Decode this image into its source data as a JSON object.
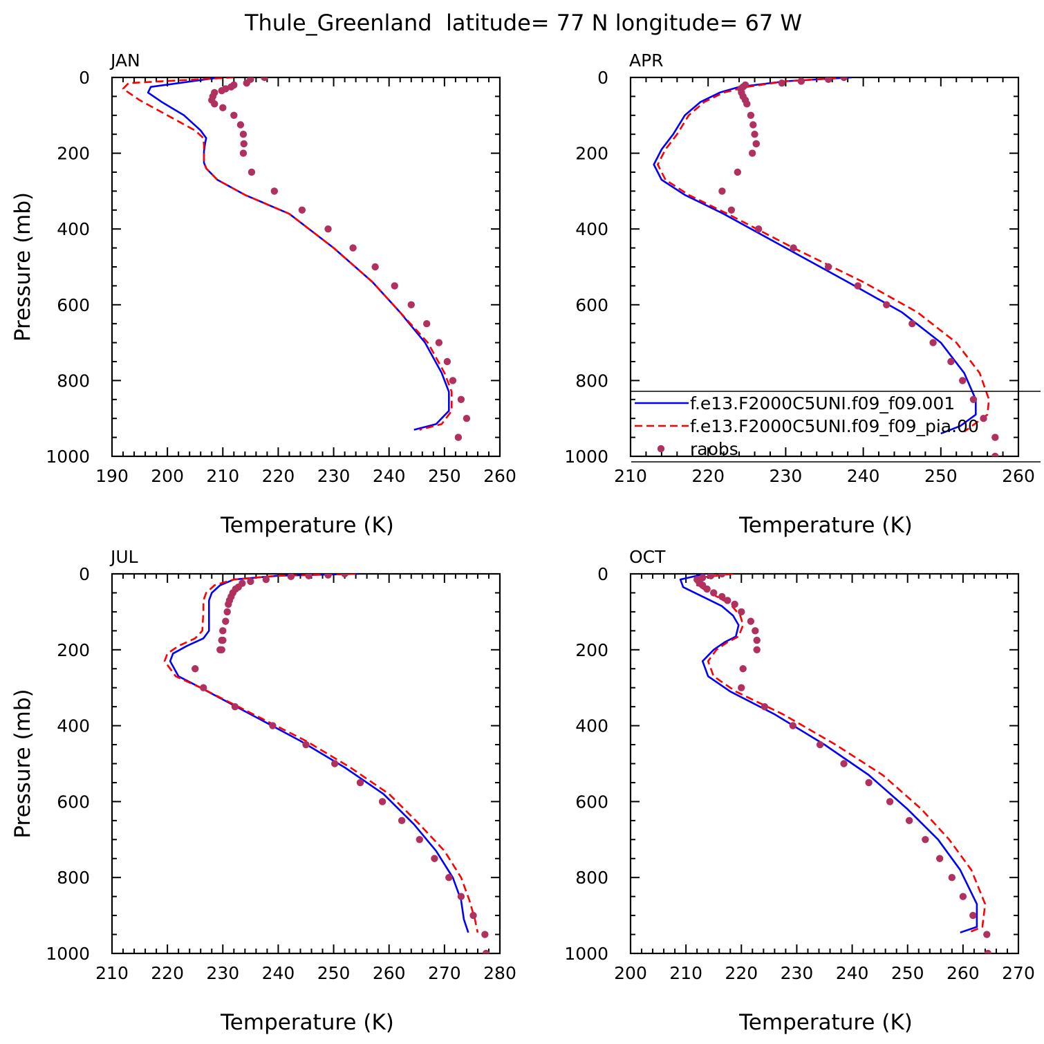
{
  "figure_title": "Thule_Greenland  latitude= 77 N longitude= 67 W",
  "legend": {
    "entries": [
      {
        "label": "f.e13.F2000C5UNI.f09_f09.001",
        "color": "#0000ff",
        "style": "solid"
      },
      {
        "label": "f.e13.F2000C5UNI.f09_f09_pia.00",
        "color": "#ff0000",
        "style": "dashed"
      },
      {
        "label": "raobs",
        "color": "#b03060",
        "style": "marker"
      }
    ]
  },
  "chart_data": [
    {
      "type": "line",
      "panel_label": "JAN",
      "xlabel": "Temperature (K)",
      "ylabel": "Pressure (mb)",
      "xlim": [
        190,
        260
      ],
      "ylim": [
        1000,
        0
      ],
      "xticks": [
        190,
        200,
        210,
        220,
        230,
        240,
        250,
        260
      ],
      "yticks": [
        0,
        200,
        400,
        600,
        800,
        1000
      ],
      "series": [
        {
          "name": "f.e13.F2000C5UNI.f09_f09.001",
          "color": "#0000ff",
          "x": [
            209.5,
            197.0,
            196.5,
            199.0,
            203.0,
            206.0,
            207.0,
            206.8,
            206.6,
            206.6,
            207.0,
            209.0,
            214.0,
            222.0,
            230.0,
            237.0,
            242.0,
            246.5,
            249.5,
            250.8,
            250.8,
            248.5,
            244.5
          ],
          "y": [
            0,
            25,
            40,
            65,
            100,
            140,
            160,
            175,
            195,
            225,
            240,
            270,
            310,
            360,
            450,
            540,
            620,
            700,
            780,
            830,
            880,
            915,
            930
          ]
        },
        {
          "name": "f.e13.F2000C5UNI.f09_f09_pia.00",
          "color": "#ff0000",
          "x": [
            212.0,
            193.0,
            192.0,
            195.0,
            200.0,
            205.0,
            206.5,
            206.6,
            206.6,
            207.0,
            209.0,
            214.0,
            222.0,
            230.0,
            237.0,
            242.0,
            247.0,
            250.0,
            251.3,
            251.3,
            249.5,
            245.5
          ],
          "y": [
            0,
            15,
            30,
            60,
            100,
            140,
            160,
            180,
            220,
            240,
            270,
            310,
            360,
            450,
            540,
            620,
            700,
            780,
            830,
            880,
            915,
            930
          ]
        },
        {
          "name": "raobs",
          "color": "#b03060",
          "marker": true,
          "x": [
            217.5,
            215.0,
            214.3,
            212.0,
            211.5,
            210.5,
            209.8,
            208.5,
            208.2,
            208.0,
            208.5,
            210.0,
            212.0,
            213.2,
            213.7,
            213.8,
            213.7,
            215.2,
            219.3,
            224.3,
            229.0,
            233.5,
            237.5,
            241.0,
            244.0,
            246.8,
            249.0,
            250.5,
            251.5,
            253.0,
            254.0,
            252.5
          ],
          "y": [
            0,
            5,
            15,
            20,
            25,
            30,
            35,
            40,
            50,
            60,
            70,
            80,
            100,
            125,
            150,
            175,
            200,
            250,
            300,
            350,
            400,
            450,
            500,
            550,
            600,
            650,
            700,
            750,
            800,
            850,
            900,
            950
          ]
        }
      ]
    },
    {
      "type": "line",
      "panel_label": "APR",
      "xlabel": "Temperature (K)",
      "ylabel": "",
      "xlim": [
        210,
        260
      ],
      "ylim": [
        1000,
        0
      ],
      "xticks": [
        210,
        220,
        230,
        240,
        250,
        260
      ],
      "yticks": [
        0,
        200,
        400,
        600,
        800,
        1000
      ],
      "series": [
        {
          "name": "f.e13.F2000C5UNI.f09_f09.001",
          "color": "#0000ff",
          "x": [
            238.5,
            230.0,
            224.0,
            221.5,
            219.0,
            217.0,
            215.5,
            214.0,
            213.0,
            214.0,
            217.0,
            222.0,
            230.0,
            238.0,
            245.0,
            250.0,
            253.0,
            254.5,
            254.5,
            252.5,
            250.0
          ],
          "y": [
            0,
            10,
            25,
            40,
            65,
            100,
            150,
            190,
            230,
            270,
            310,
            360,
            450,
            540,
            620,
            700,
            780,
            850,
            890,
            920,
            940
          ]
        },
        {
          "name": "f.e13.F2000C5UNI.f09_f09_pia.00",
          "color": "#ff0000",
          "x": [
            238.0,
            230.0,
            225.0,
            222.0,
            219.5,
            217.5,
            216.0,
            214.5,
            213.5,
            214.5,
            217.5,
            222.5,
            231.0,
            240.0,
            247.0,
            252.0,
            255.0,
            256.2,
            256.0,
            254.0,
            253.0
          ],
          "y": [
            0,
            10,
            25,
            40,
            65,
            100,
            150,
            190,
            230,
            270,
            310,
            360,
            450,
            540,
            620,
            700,
            780,
            850,
            890,
            920,
            935
          ]
        },
        {
          "name": "raobs",
          "color": "#b03060",
          "marker": true,
          "x": [
            237.5,
            235.5,
            232.0,
            229.5,
            224.8,
            224.5,
            224.2,
            224.3,
            224.5,
            224.8,
            225.0,
            225.5,
            225.8,
            226.0,
            226.2,
            226.2,
            225.7,
            223.8,
            221.8,
            223.0,
            226.5,
            231.0,
            235.5,
            239.3,
            243.0,
            246.3,
            249.0,
            251.3,
            252.8,
            254.2,
            255.5,
            257.0,
            257.0
          ],
          "y": [
            0,
            5,
            10,
            15,
            20,
            25,
            30,
            40,
            50,
            60,
            70,
            100,
            125,
            150,
            175,
            175,
            200,
            250,
            300,
            350,
            400,
            450,
            500,
            550,
            600,
            650,
            700,
            750,
            800,
            850,
            900,
            950,
            1000
          ]
        }
      ]
    },
    {
      "type": "line",
      "panel_label": "JUL",
      "xlabel": "Temperature (K)",
      "ylabel": "Pressure (mb)",
      "xlim": [
        210,
        280
      ],
      "ylim": [
        1000,
        0
      ],
      "xticks": [
        210,
        220,
        230,
        240,
        250,
        260,
        270,
        280
      ],
      "yticks": [
        0,
        200,
        400,
        600,
        800,
        1000
      ],
      "series": [
        {
          "name": "f.e13.F2000C5UNI.f09_f09.001",
          "color": "#0000ff",
          "x": [
            254.5,
            240.0,
            232.0,
            229.5,
            228.0,
            227.5,
            227.5,
            227.5,
            226.5,
            223.5,
            221.0,
            220.5,
            222.0,
            226.0,
            235.0,
            244.0,
            252.0,
            259.0,
            264.5,
            268.5,
            271.5,
            273.0,
            273.5,
            274.3
          ],
          "y": [
            0,
            5,
            15,
            30,
            50,
            70,
            100,
            150,
            170,
            190,
            210,
            230,
            270,
            300,
            370,
            440,
            510,
            580,
            660,
            730,
            800,
            860,
            910,
            945
          ]
        },
        {
          "name": "f.e13.F2000C5UNI.f09_f09_pia.00",
          "color": "#ff0000",
          "x": [
            254.0,
            240.0,
            232.0,
            228.5,
            227.0,
            226.5,
            226.5,
            226.3,
            225.0,
            222.0,
            220.0,
            219.5,
            221.5,
            226.0,
            235.5,
            245.0,
            253.0,
            260.0,
            265.5,
            270.0,
            273.0,
            274.5,
            275.5,
            276.0
          ],
          "y": [
            0,
            5,
            15,
            30,
            50,
            70,
            100,
            150,
            170,
            190,
            210,
            230,
            270,
            300,
            370,
            440,
            510,
            580,
            660,
            730,
            800,
            860,
            910,
            945
          ]
        },
        {
          "name": "raobs",
          "color": "#b03060",
          "marker": true,
          "x": [
            252.0,
            249.0,
            245.5,
            242.3,
            237.8,
            235.0,
            233.5,
            232.8,
            232.3,
            231.8,
            231.5,
            231.2,
            231.0,
            230.8,
            230.5,
            230.0,
            230.0,
            230.0,
            229.8,
            229.8,
            229.5,
            225.0,
            226.5,
            232.2,
            239.0,
            245.0,
            250.2,
            254.8,
            258.8,
            262.3,
            265.5,
            268.2,
            270.8,
            273.0,
            275.2,
            277.3,
            277.5
          ],
          "y": [
            0,
            3,
            5,
            7,
            15,
            20,
            25,
            35,
            40,
            50,
            60,
            70,
            80,
            100,
            125,
            150,
            175,
            175,
            175,
            200,
            200,
            250,
            300,
            350,
            400,
            450,
            500,
            550,
            600,
            650,
            700,
            750,
            800,
            850,
            900,
            950,
            1000
          ]
        }
      ]
    },
    {
      "type": "line",
      "panel_label": "OCT",
      "xlabel": "Temperature (K)",
      "ylabel": "",
      "xlim": [
        200,
        270
      ],
      "ylim": [
        1000,
        0
      ],
      "xticks": [
        200,
        210,
        220,
        230,
        240,
        250,
        260,
        270
      ],
      "yticks": [
        0,
        200,
        400,
        600,
        800,
        1000
      ],
      "series": [
        {
          "name": "f.e13.F2000C5UNI.f09_f09.001",
          "color": "#0000ff",
          "x": [
            213.5,
            209.0,
            209.5,
            213.0,
            216.5,
            218.5,
            219.5,
            219.0,
            217.0,
            215.0,
            213.0,
            214.0,
            218.0,
            226.0,
            235.0,
            243.0,
            250.0,
            255.5,
            259.5,
            262.5,
            262.5,
            259.5
          ],
          "y": [
            0,
            15,
            35,
            60,
            85,
            110,
            135,
            165,
            180,
            200,
            230,
            270,
            310,
            370,
            450,
            530,
            620,
            700,
            780,
            870,
            930,
            945
          ]
        },
        {
          "name": "f.e13.F2000C5UNI.f09_f09_pia.00",
          "color": "#ff0000",
          "x": [
            218.5,
            212.5,
            212.0,
            215.0,
            218.0,
            219.8,
            220.3,
            219.5,
            217.5,
            215.5,
            214.0,
            215.0,
            219.0,
            227.5,
            237.0,
            245.5,
            252.5,
            257.5,
            261.5,
            264.0,
            263.5,
            261.0
          ],
          "y": [
            0,
            10,
            30,
            55,
            80,
            110,
            135,
            165,
            180,
            200,
            230,
            270,
            310,
            370,
            450,
            530,
            620,
            700,
            780,
            870,
            930,
            945
          ]
        },
        {
          "name": "raobs",
          "color": "#b03060",
          "marker": true,
          "x": [
            216.5,
            214.5,
            213.0,
            212.0,
            212.3,
            212.5,
            213.0,
            213.8,
            215.0,
            216.5,
            217.5,
            218.8,
            220.0,
            221.7,
            222.5,
            222.8,
            222.8,
            220.3,
            220.0,
            224.2,
            229.3,
            234.2,
            238.5,
            243.0,
            246.8,
            250.3,
            253.2,
            255.8,
            258.0,
            260.0,
            261.8,
            264.3,
            264.5
          ],
          "y": [
            0,
            5,
            10,
            15,
            20,
            25,
            30,
            40,
            50,
            60,
            70,
            80,
            100,
            125,
            150,
            175,
            200,
            250,
            300,
            350,
            400,
            450,
            500,
            550,
            600,
            650,
            700,
            750,
            800,
            850,
            900,
            950,
            1000
          ]
        }
      ]
    }
  ]
}
